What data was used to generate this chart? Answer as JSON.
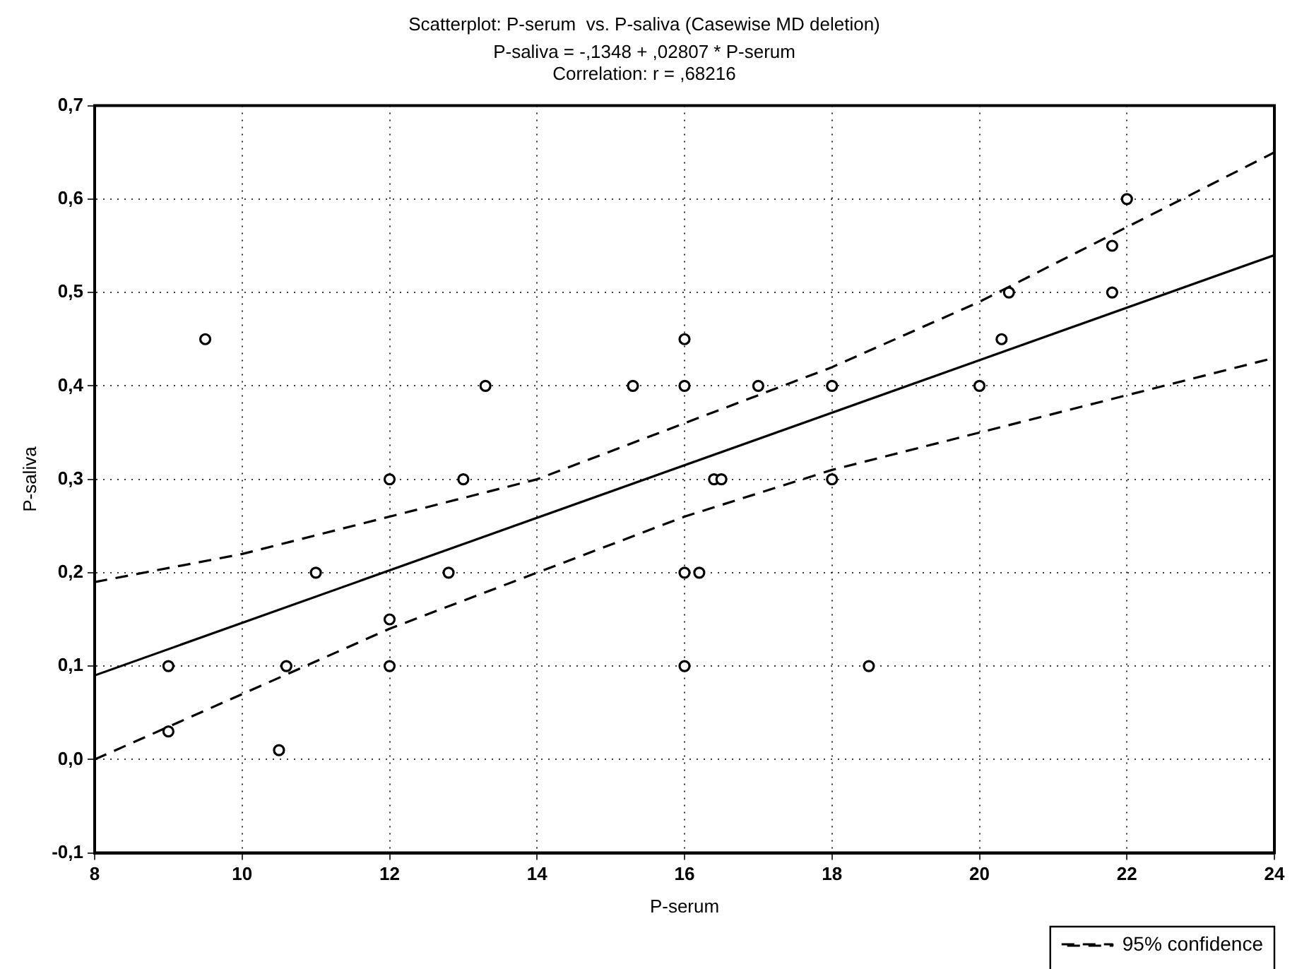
{
  "chart_data": {
    "type": "scatter",
    "title": "Scatterplot: P-serum  vs. P-saliva (Casewise MD deletion)",
    "subtitle": "P-saliva = -,1348 + ,02807 * P-serum",
    "annotations": [
      "Correlation: r = ,68216"
    ],
    "xlabel": "P-serum",
    "ylabel": "P-saliva",
    "xlim": [
      8,
      24
    ],
    "xticks": [
      8,
      10,
      12,
      14,
      16,
      18,
      20,
      22,
      24
    ],
    "ylim": [
      -0.1,
      0.7
    ],
    "yticks": [
      {
        "value": -0.1,
        "label": "-0,1"
      },
      {
        "value": 0,
        "label": "0,0"
      },
      {
        "value": 0.1,
        "label": "0,1"
      },
      {
        "value": 0.2,
        "label": "0,2"
      },
      {
        "value": 0.3,
        "label": "0,3"
      },
      {
        "value": 0.4,
        "label": "0,4"
      },
      {
        "value": 0.5,
        "label": "0,5"
      },
      {
        "value": 0.6,
        "label": "0,6"
      },
      {
        "value": 0.7,
        "label": "0,7"
      }
    ],
    "grid": true,
    "legend": "bottom right",
    "marker": "circle",
    "series": [
      {
        "color": "#000000",
        "x": [
          9.5,
          13.3,
          12.0,
          13.0,
          11.0,
          12.8,
          9.0,
          9.0,
          10.5,
          10.6,
          12.0,
          12.0,
          15.3,
          16.0,
          16.0,
          17.0,
          18.0,
          18.0,
          16.4,
          16.5,
          20.0,
          20.3,
          20.4,
          21.8,
          21.8,
          22.0,
          16.0,
          16.2,
          16.0,
          18.5
        ],
        "values": [
          0.45,
          0.4,
          0.3,
          0.3,
          0.2,
          0.2,
          0.1,
          0.03,
          0.01,
          0.1,
          0.15,
          0.1,
          0.4,
          0.4,
          0.45,
          0.4,
          0.4,
          0.3,
          0.3,
          0.3,
          0.4,
          0.45,
          0.5,
          0.5,
          0.55,
          0.6,
          0.2,
          0.2,
          0.1,
          0.1
        ]
      },
      {
        "type": "line",
        "color": "#000000",
        "marker": "none",
        "line_style": "solid",
        "x": [
          8,
          24
        ],
        "values": [
          0.09,
          0.54
        ]
      },
      {
        "type": "line",
        "name": "95% confidence",
        "color": "#000000",
        "marker": "none",
        "line_style": "dashed",
        "x": [
          8,
          10,
          12,
          14,
          16,
          18,
          20,
          22,
          24
        ],
        "values": [
          0.19,
          0.22,
          0.26,
          0.3,
          0.36,
          0.42,
          0.49,
          0.57,
          0.65
        ]
      },
      {
        "type": "line",
        "color": "#000000",
        "marker": "none",
        "line_style": "dashed",
        "x": [
          8,
          10,
          12,
          14,
          16,
          18,
          20,
          22,
          24
        ],
        "values": [
          0.0,
          0.07,
          0.14,
          0.2,
          0.26,
          0.31,
          0.35,
          0.39,
          0.43
        ]
      }
    ]
  }
}
